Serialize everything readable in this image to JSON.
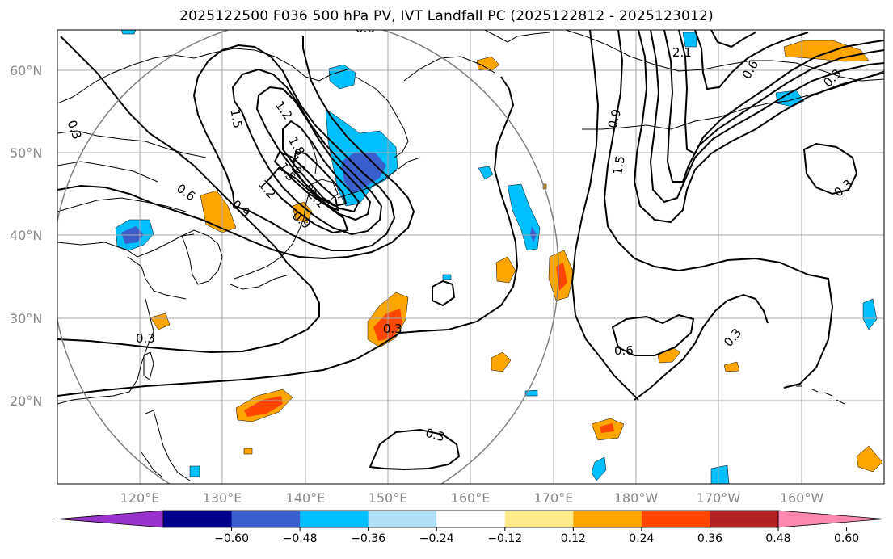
{
  "title": "2025122500 F036 500 hPa PV, IVT Landfall PC (2025122812 - 2025123012)",
  "map": {
    "lat_labels": [
      "60°N",
      "50°N",
      "40°N",
      "30°N",
      "20°N"
    ],
    "lon_labels": [
      "120°E",
      "130°E",
      "140°E",
      "150°E",
      "160°E",
      "170°E",
      "180°W",
      "170°W",
      "160°W"
    ],
    "contour_labels": [
      "0.3",
      "0.6",
      "0.9",
      "1.2",
      "1.5",
      "1.8",
      "2.1",
      "0.3",
      "0.6",
      "0.9",
      "1.2",
      "1.5",
      "1.8",
      "2.1",
      "0.6",
      "0.9",
      "1.5",
      "0.3",
      "0.3",
      "0.3",
      "0.6",
      "0.3",
      "0.3"
    ],
    "colors": {
      "coastline": "#000000",
      "contour": "#000000",
      "gridline": "#aaaaaa",
      "circle": "#808080"
    }
  },
  "colorbar": {
    "tick_labels": [
      "−0.60",
      "−0.48",
      "−0.36",
      "−0.24",
      "−0.12",
      "0.12",
      "0.24",
      "0.36",
      "0.48",
      "0.60"
    ],
    "colors": [
      "#9932cc",
      "#00008b",
      "#3a5fcd",
      "#00bfff",
      "#b0e0f6",
      "#ffffff",
      "#ffe98a",
      "#ffa500",
      "#ff4500",
      "#b22222",
      "#ff88b0"
    ]
  }
}
